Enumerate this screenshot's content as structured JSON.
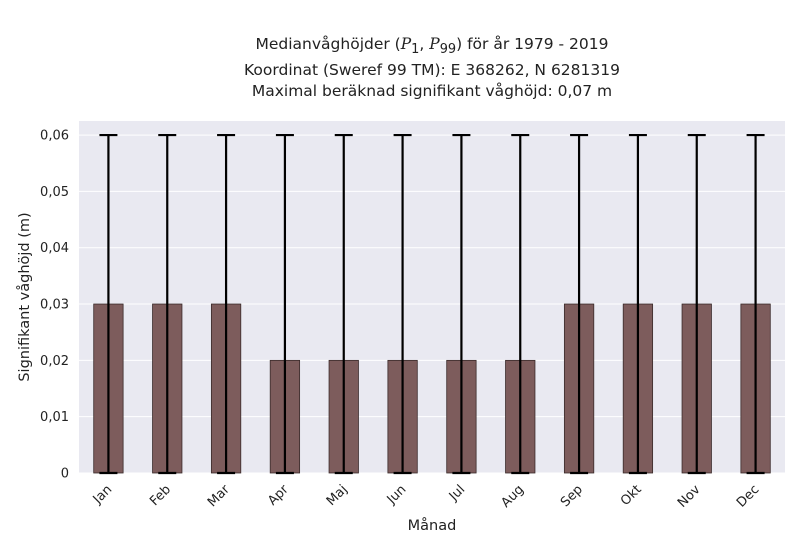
{
  "chart_data": {
    "type": "bar",
    "title_lines": {
      "line1_prefix": "Medianvåghöjder (",
      "p1_base": "P",
      "p1_sub": "1",
      "sep": ", ",
      "p99_base": "P",
      "p99_sub": "99",
      "line1_suffix": ") för år 1979 - 2019",
      "line2": "Koordinat (Sweref 99 TM): E 368262, N 6281319",
      "line3": "Maximal beräknad signifikant våghöjd: 0,07 m"
    },
    "xlabel": "Månad",
    "ylabel": "Signifikant våghöjd (m)",
    "categories": [
      "Jan",
      "Feb",
      "Mar",
      "Apr",
      "Maj",
      "Jun",
      "Jul",
      "Aug",
      "Sep",
      "Okt",
      "Nov",
      "Dec"
    ],
    "values": [
      0.03,
      0.03,
      0.03,
      0.02,
      0.02,
      0.02,
      0.02,
      0.02,
      0.03,
      0.03,
      0.03,
      0.03
    ],
    "error_low": [
      0,
      0,
      0,
      0,
      0,
      0,
      0,
      0,
      0,
      0,
      0,
      0
    ],
    "error_high": [
      0.06,
      0.06,
      0.06,
      0.06,
      0.06,
      0.06,
      0.06,
      0.06,
      0.06,
      0.06,
      0.06,
      0.06
    ],
    "ylim": [
      0,
      0.0625
    ],
    "yticks": [
      0,
      0.01,
      0.02,
      0.03,
      0.04,
      0.05,
      0.06
    ],
    "ytick_labels": [
      "0",
      "0,01",
      "0,02",
      "0,03",
      "0,04",
      "0,05",
      "0,06"
    ],
    "grid": true,
    "colors": {
      "bar": "#7d5c5c",
      "bar_edge": "#3a2a2a",
      "error_bar": "#000000",
      "plot_background": "#e9e9f1",
      "grid": "#ffffff"
    }
  }
}
